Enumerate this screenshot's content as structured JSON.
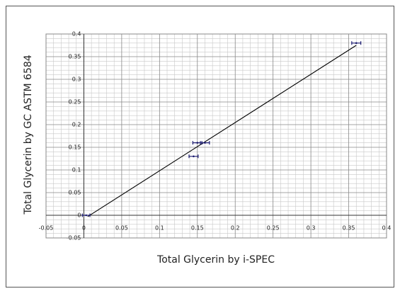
{
  "chart_data": {
    "type": "scatter",
    "xlabel": "Total Glycerin by i-SPEC",
    "ylabel": "Total Glycerin by GC ASTM 6584",
    "xlim": [
      -0.05,
      0.4
    ],
    "ylim": [
      -0.05,
      0.4
    ],
    "xticks": [
      -0.05,
      0,
      0.05,
      0.1,
      0.15,
      0.2,
      0.25,
      0.3,
      0.35,
      0.4
    ],
    "yticks": [
      -0.05,
      0,
      0.05,
      0.1,
      0.15,
      0.2,
      0.25,
      0.3,
      0.35,
      0.4
    ],
    "grid": true,
    "minor_grid": true,
    "series": [
      {
        "color": "#1a1a6e",
        "x": [
          0.003,
          0.145,
          0.15,
          0.16,
          0.36
        ],
        "values": [
          0,
          0.13,
          0.16,
          0.16,
          0.38
        ],
        "xerr": [
          0.005,
          0.006,
          0.006,
          0.006,
          0.006
        ]
      }
    ],
    "fit": {
      "color": "#000000",
      "x": [
        0.005,
        0.36
      ],
      "values": [
        -0.003,
        0.375
      ]
    }
  }
}
